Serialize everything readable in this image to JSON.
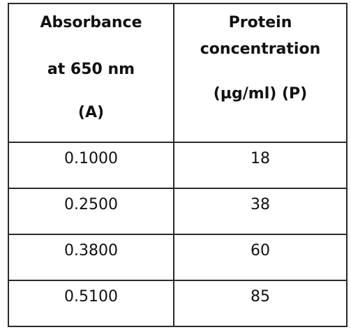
{
  "table": {
    "headers": [
      {
        "lines": [
          "Absorbance",
          "at 650 nm",
          "(A)"
        ]
      },
      {
        "lines": [
          "Protein",
          "concentration",
          "(µg/ml) (P)"
        ]
      }
    ],
    "rows": [
      {
        "absorbance": "0.1000",
        "protein": "18"
      },
      {
        "absorbance": "0.2500",
        "protein": "38"
      },
      {
        "absorbance": "0.3800",
        "protein": "60"
      },
      {
        "absorbance": "0.5100",
        "protein": "85"
      }
    ]
  }
}
